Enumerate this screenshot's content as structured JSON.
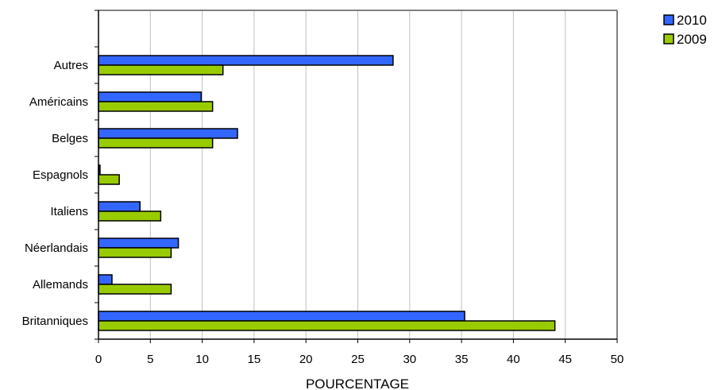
{
  "chart_data": {
    "type": "bar",
    "orientation": "horizontal",
    "categories": [
      "Britanniques",
      "Allemands",
      "Néerlandais",
      "Italiens",
      "Espagnols",
      "Belges",
      "Américains",
      "Autres"
    ],
    "series": [
      {
        "name": "2010",
        "color": "#3366ff",
        "values": [
          35.3,
          1.3,
          7.7,
          4.0,
          0.15,
          13.4,
          9.9,
          28.4
        ]
      },
      {
        "name": "2009",
        "color": "#99cc00",
        "values": [
          44.0,
          7.0,
          7.0,
          6.0,
          2.0,
          11.0,
          11.0,
          12.0
        ]
      }
    ],
    "xlabel": "POURCENTAGE",
    "ylabel": "",
    "xlim": [
      0,
      50
    ],
    "xticks": [
      0,
      5,
      10,
      15,
      20,
      25,
      30,
      35,
      40,
      45,
      50
    ],
    "grid": "vertical",
    "legend_position": "top-right",
    "colors": {
      "gridline": "#c0c0c0",
      "frame": "#808080",
      "bar_outline": "#000000"
    }
  }
}
